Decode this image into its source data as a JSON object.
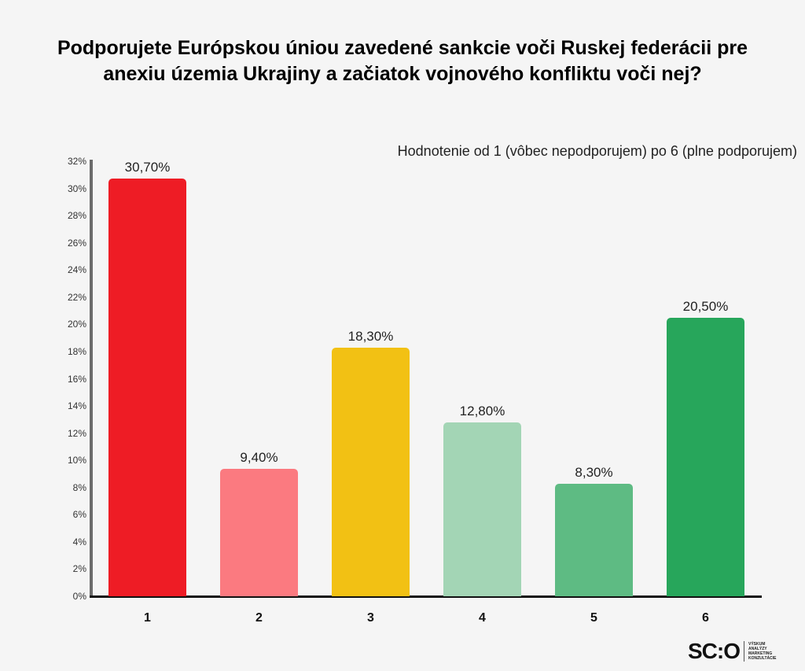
{
  "title": "Podporujete Európskou úniou zavedené sankcie voči Ruskej federácii pre anexiu územia Ukrajiny a začiatok vojnového konfliktu voči nej?",
  "subtitle": "Hodnotenie  od 1 (vôbec nepodporujem) po 6 (plne podporujem)",
  "logo": {
    "main": "SC:O",
    "tagline": [
      "VÝSKUM",
      "ANALÝZY",
      "MARKETING",
      "KONZULTÁCIE"
    ]
  },
  "chart_data": {
    "type": "bar",
    "title": "Podporujete Európskou úniou zavedené sankcie voči Ruskej federácii pre anexiu územia Ukrajiny a začiatok vojnového konfliktu voči nej?",
    "subtitle": "Hodnotenie  od 1 (vôbec nepodporujem) po 6 (plne podporujem)",
    "categories": [
      "1",
      "2",
      "3",
      "4",
      "5",
      "6"
    ],
    "values": [
      30.7,
      9.4,
      18.3,
      12.8,
      8.3,
      20.5
    ],
    "value_labels": [
      "30,70%",
      "9,40%",
      "18,30%",
      "12,80%",
      "8,30%",
      "20,50%"
    ],
    "colors": [
      "#ee1c25",
      "#fb7a80",
      "#f2c114",
      "#a3d5b5",
      "#5ebb83",
      "#27a65b"
    ],
    "xlabel": "",
    "ylabel": "",
    "ylim": [
      0,
      32
    ],
    "yticks": [
      "0%",
      "2%",
      "4%",
      "6%",
      "8%",
      "10%",
      "12%",
      "14%",
      "16%",
      "18%",
      "20%",
      "22%",
      "24%",
      "26%",
      "28%",
      "30%",
      "32%"
    ],
    "grid": false,
    "legend": "none"
  }
}
